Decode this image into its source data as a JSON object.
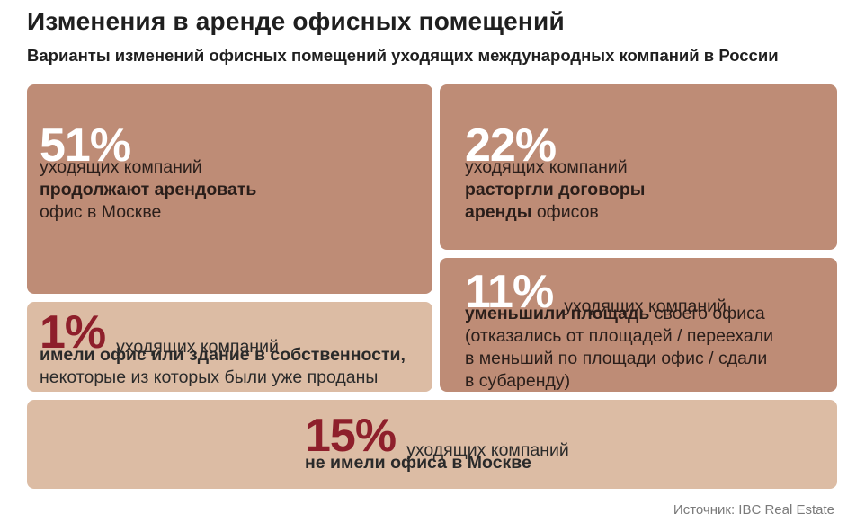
{
  "header": {
    "title": "Изменения в аренде офисных помещений",
    "subtitle": "Варианты изменений офисных помещений уходящих международных компаний в России"
  },
  "colors": {
    "dark_tile": "#be8c76",
    "light_tile": "#dcbca4",
    "dark_percent": "#ffffff",
    "light_percent": "#8e1f2b"
  },
  "chart_data": {
    "type": "table",
    "title": "Изменения в аренде офисных помещений",
    "subtitle": "Варианты изменений офисных помещений уходящих международных компаний в России",
    "unit": "%",
    "items": [
      {
        "value": 51,
        "percent_label": "51%",
        "text1": "уходящих компаний",
        "bold": "продолжают арендовать",
        "text2": "офис в Москве"
      },
      {
        "value": 22,
        "percent_label": "22%",
        "text1": "уходящих компаний",
        "bold_line1": "расторгли договоры",
        "bold_line2": "аренды",
        "text2": " офисов"
      },
      {
        "value": 11,
        "percent_label": "11%",
        "text1": "уходящих компаний",
        "bold": "уменьшили площадь",
        "text2": " своего офиса",
        "line3": "(отказались от площадей / переехали",
        "line4": "в меньший по площади офис / сдали",
        "line5": "в субаренду)"
      },
      {
        "value": 1,
        "percent_label": "1%",
        "text1": "уходящих компаний",
        "bold": "имели офис или здание в собственности,",
        "text2": "некоторые из которых были уже проданы"
      },
      {
        "value": 15,
        "percent_label": "15%",
        "text1": "уходящих компаний",
        "bold": "не имели офиса в Москве"
      }
    ]
  },
  "footer": {
    "source": "Источник: IBC Real Estate"
  }
}
